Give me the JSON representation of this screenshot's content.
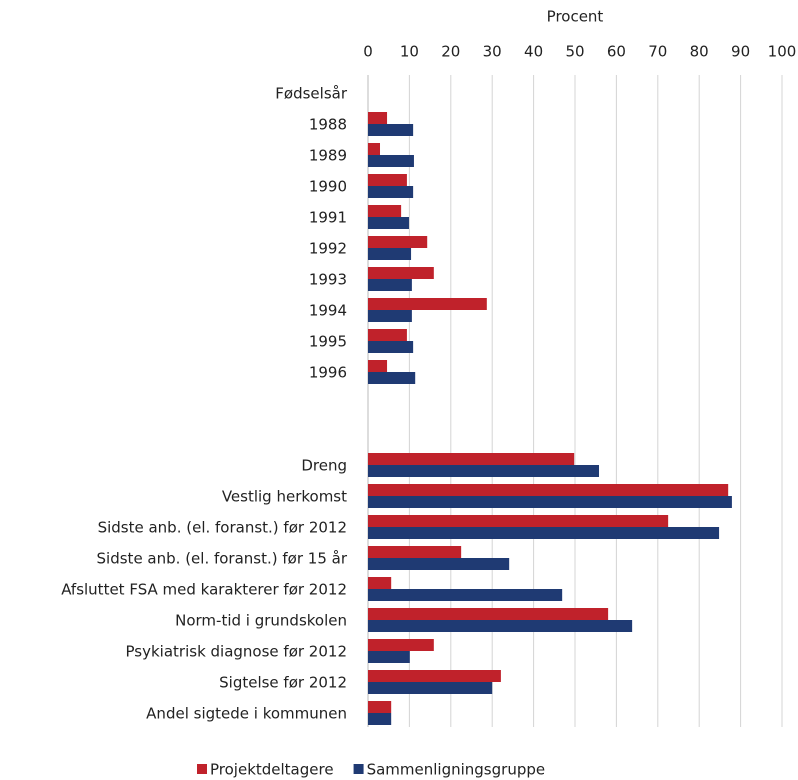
{
  "chart_data": {
    "type": "hbar",
    "xlabel": "Procent",
    "categories": [
      "Fødselsår",
      "1988",
      "1989",
      "1990",
      "1991",
      "1992",
      "1993",
      "1994",
      "1995",
      "1996",
      null,
      null,
      "Dreng",
      "Vestlig herkomst",
      "Sidste anb. (el. foranst.) før 2012",
      "Sidste anb. (el. foranst.) før 15 år",
      "Afsluttet FSA med karakterer før 2012",
      "Norm-tid i grundskolen",
      "Psykiatrisk diagnose før 2012",
      "Sigtelse før 2012",
      "Andel sigtede i kommunen"
    ],
    "series": [
      {
        "name": "Projektdeltagere",
        "color": "#c0222b",
        "values": [
          null,
          4.6,
          2.9,
          9.4,
          8,
          14.3,
          15.9,
          28.7,
          9.4,
          4.6,
          null,
          null,
          49.8,
          87,
          72.5,
          22.5,
          5.6,
          58,
          15.9,
          32.1,
          5.6
        ]
      },
      {
        "name": "Sammenligningsgruppe",
        "color": "#1f3a73",
        "values": [
          null,
          10.9,
          11.1,
          10.9,
          9.9,
          10.4,
          10.6,
          10.6,
          10.9,
          11.4,
          null,
          null,
          55.8,
          87.9,
          84.8,
          34.1,
          46.9,
          63.8,
          10.1,
          30,
          5.6
        ]
      }
    ],
    "xlim": [
      0,
      100
    ],
    "xticks": [
      0,
      10,
      20,
      30,
      40,
      50,
      60,
      70,
      80,
      90,
      100
    ],
    "grid": true
  }
}
